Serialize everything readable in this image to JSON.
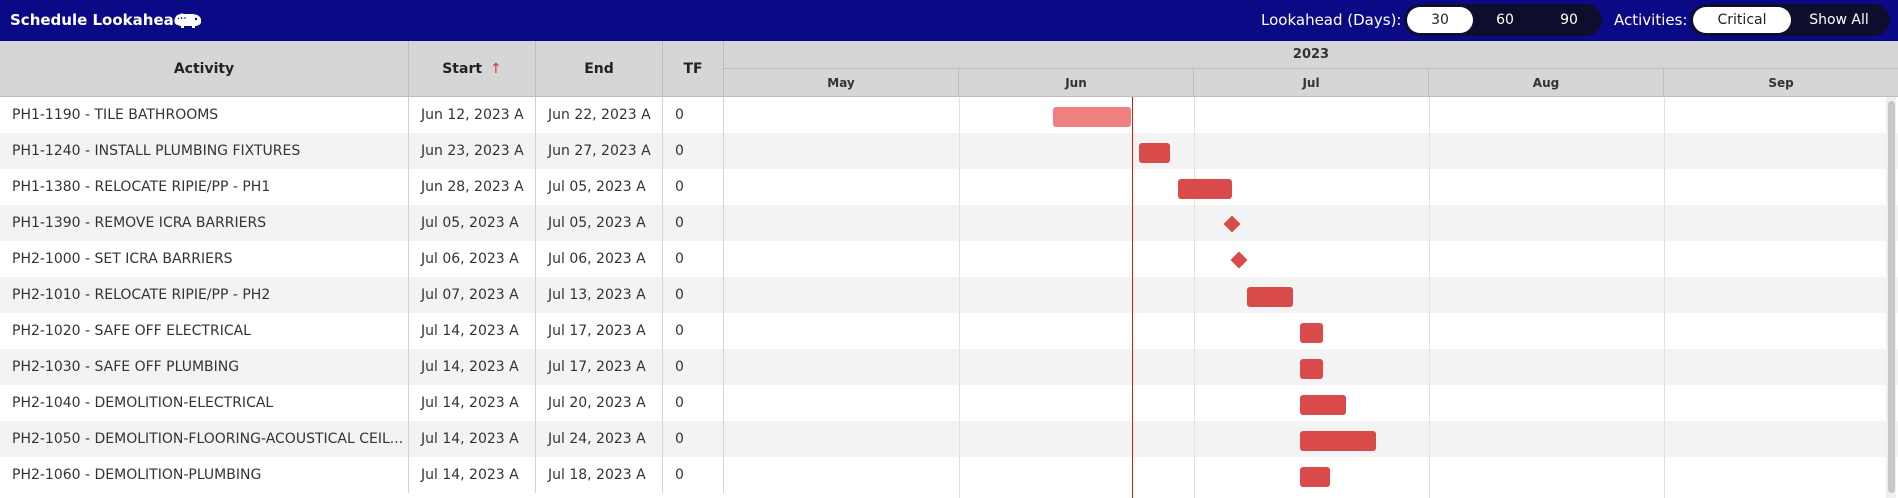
{
  "header": {
    "title": "Schedule Lookahead",
    "logo_icon": "hippo-icon",
    "lookahead_label": "Lookahead (Days):",
    "lookahead_options": [
      "30",
      "60",
      "90"
    ],
    "lookahead_selected": "30",
    "activities_label": "Activities:",
    "activities_options": [
      "Critical",
      "Show All"
    ],
    "activities_selected": "Critical",
    "background_color": "#0a0a86"
  },
  "table": {
    "columns": {
      "activity": "Activity",
      "start": "Start",
      "end": "End",
      "tf": "TF"
    },
    "sort_icon": "↑",
    "rows": [
      {
        "activity": "PH1-1190 - TILE BATHROOMS",
        "start": "Jun 12, 2023 A",
        "end": "Jun 22, 2023 A",
        "tf": "0"
      },
      {
        "activity": "PH1-1240 - INSTALL PLUMBING FIXTURES",
        "start": "Jun 23, 2023 A",
        "end": "Jun 27, 2023 A",
        "tf": "0"
      },
      {
        "activity": "PH1-1380 - RELOCATE RIPIE/PP - PH1",
        "start": "Jun 28, 2023 A",
        "end": "Jul 05, 2023 A",
        "tf": "0"
      },
      {
        "activity": "PH1-1390 - REMOVE ICRA BARRIERS",
        "start": "Jul 05, 2023 A",
        "end": "Jul 05, 2023 A",
        "tf": "0"
      },
      {
        "activity": "PH2-1000 - SET ICRA BARRIERS",
        "start": "Jul 06, 2023 A",
        "end": "Jul 06, 2023 A",
        "tf": "0"
      },
      {
        "activity": "PH2-1010 - RELOCATE RIPIE/PP - PH2",
        "start": "Jul 07, 2023 A",
        "end": "Jul 13, 2023 A",
        "tf": "0"
      },
      {
        "activity": "PH2-1020 - SAFE OFF ELECTRICAL",
        "start": "Jul 14, 2023 A",
        "end": "Jul 17, 2023 A",
        "tf": "0"
      },
      {
        "activity": "PH2-1030 - SAFE OFF PLUMBING",
        "start": "Jul 14, 2023 A",
        "end": "Jul 17, 2023 A",
        "tf": "0"
      },
      {
        "activity": "PH2-1040 - DEMOLITION-ELECTRICAL",
        "start": "Jul 14, 2023 A",
        "end": "Jul 20, 2023 A",
        "tf": "0"
      },
      {
        "activity": "PH2-1050 - DEMOLITION-FLOORING-ACOUSTICAL CEIL...",
        "start": "Jul 14, 2023 A",
        "end": "Jul 24, 2023 A",
        "tf": "0"
      },
      {
        "activity": "PH2-1060 - DEMOLITION-PLUMBING",
        "start": "Jul 14, 2023 A",
        "end": "Jul 18, 2023 A",
        "tf": "0"
      }
    ]
  },
  "gantt": {
    "year": "2023",
    "months": [
      "May",
      "Jun",
      "Jul",
      "Aug",
      "Sep"
    ],
    "bar_color": "#d94a4a",
    "highlight_bar_color": "#f08080",
    "today_line_color": "#c81e1e"
  }
}
